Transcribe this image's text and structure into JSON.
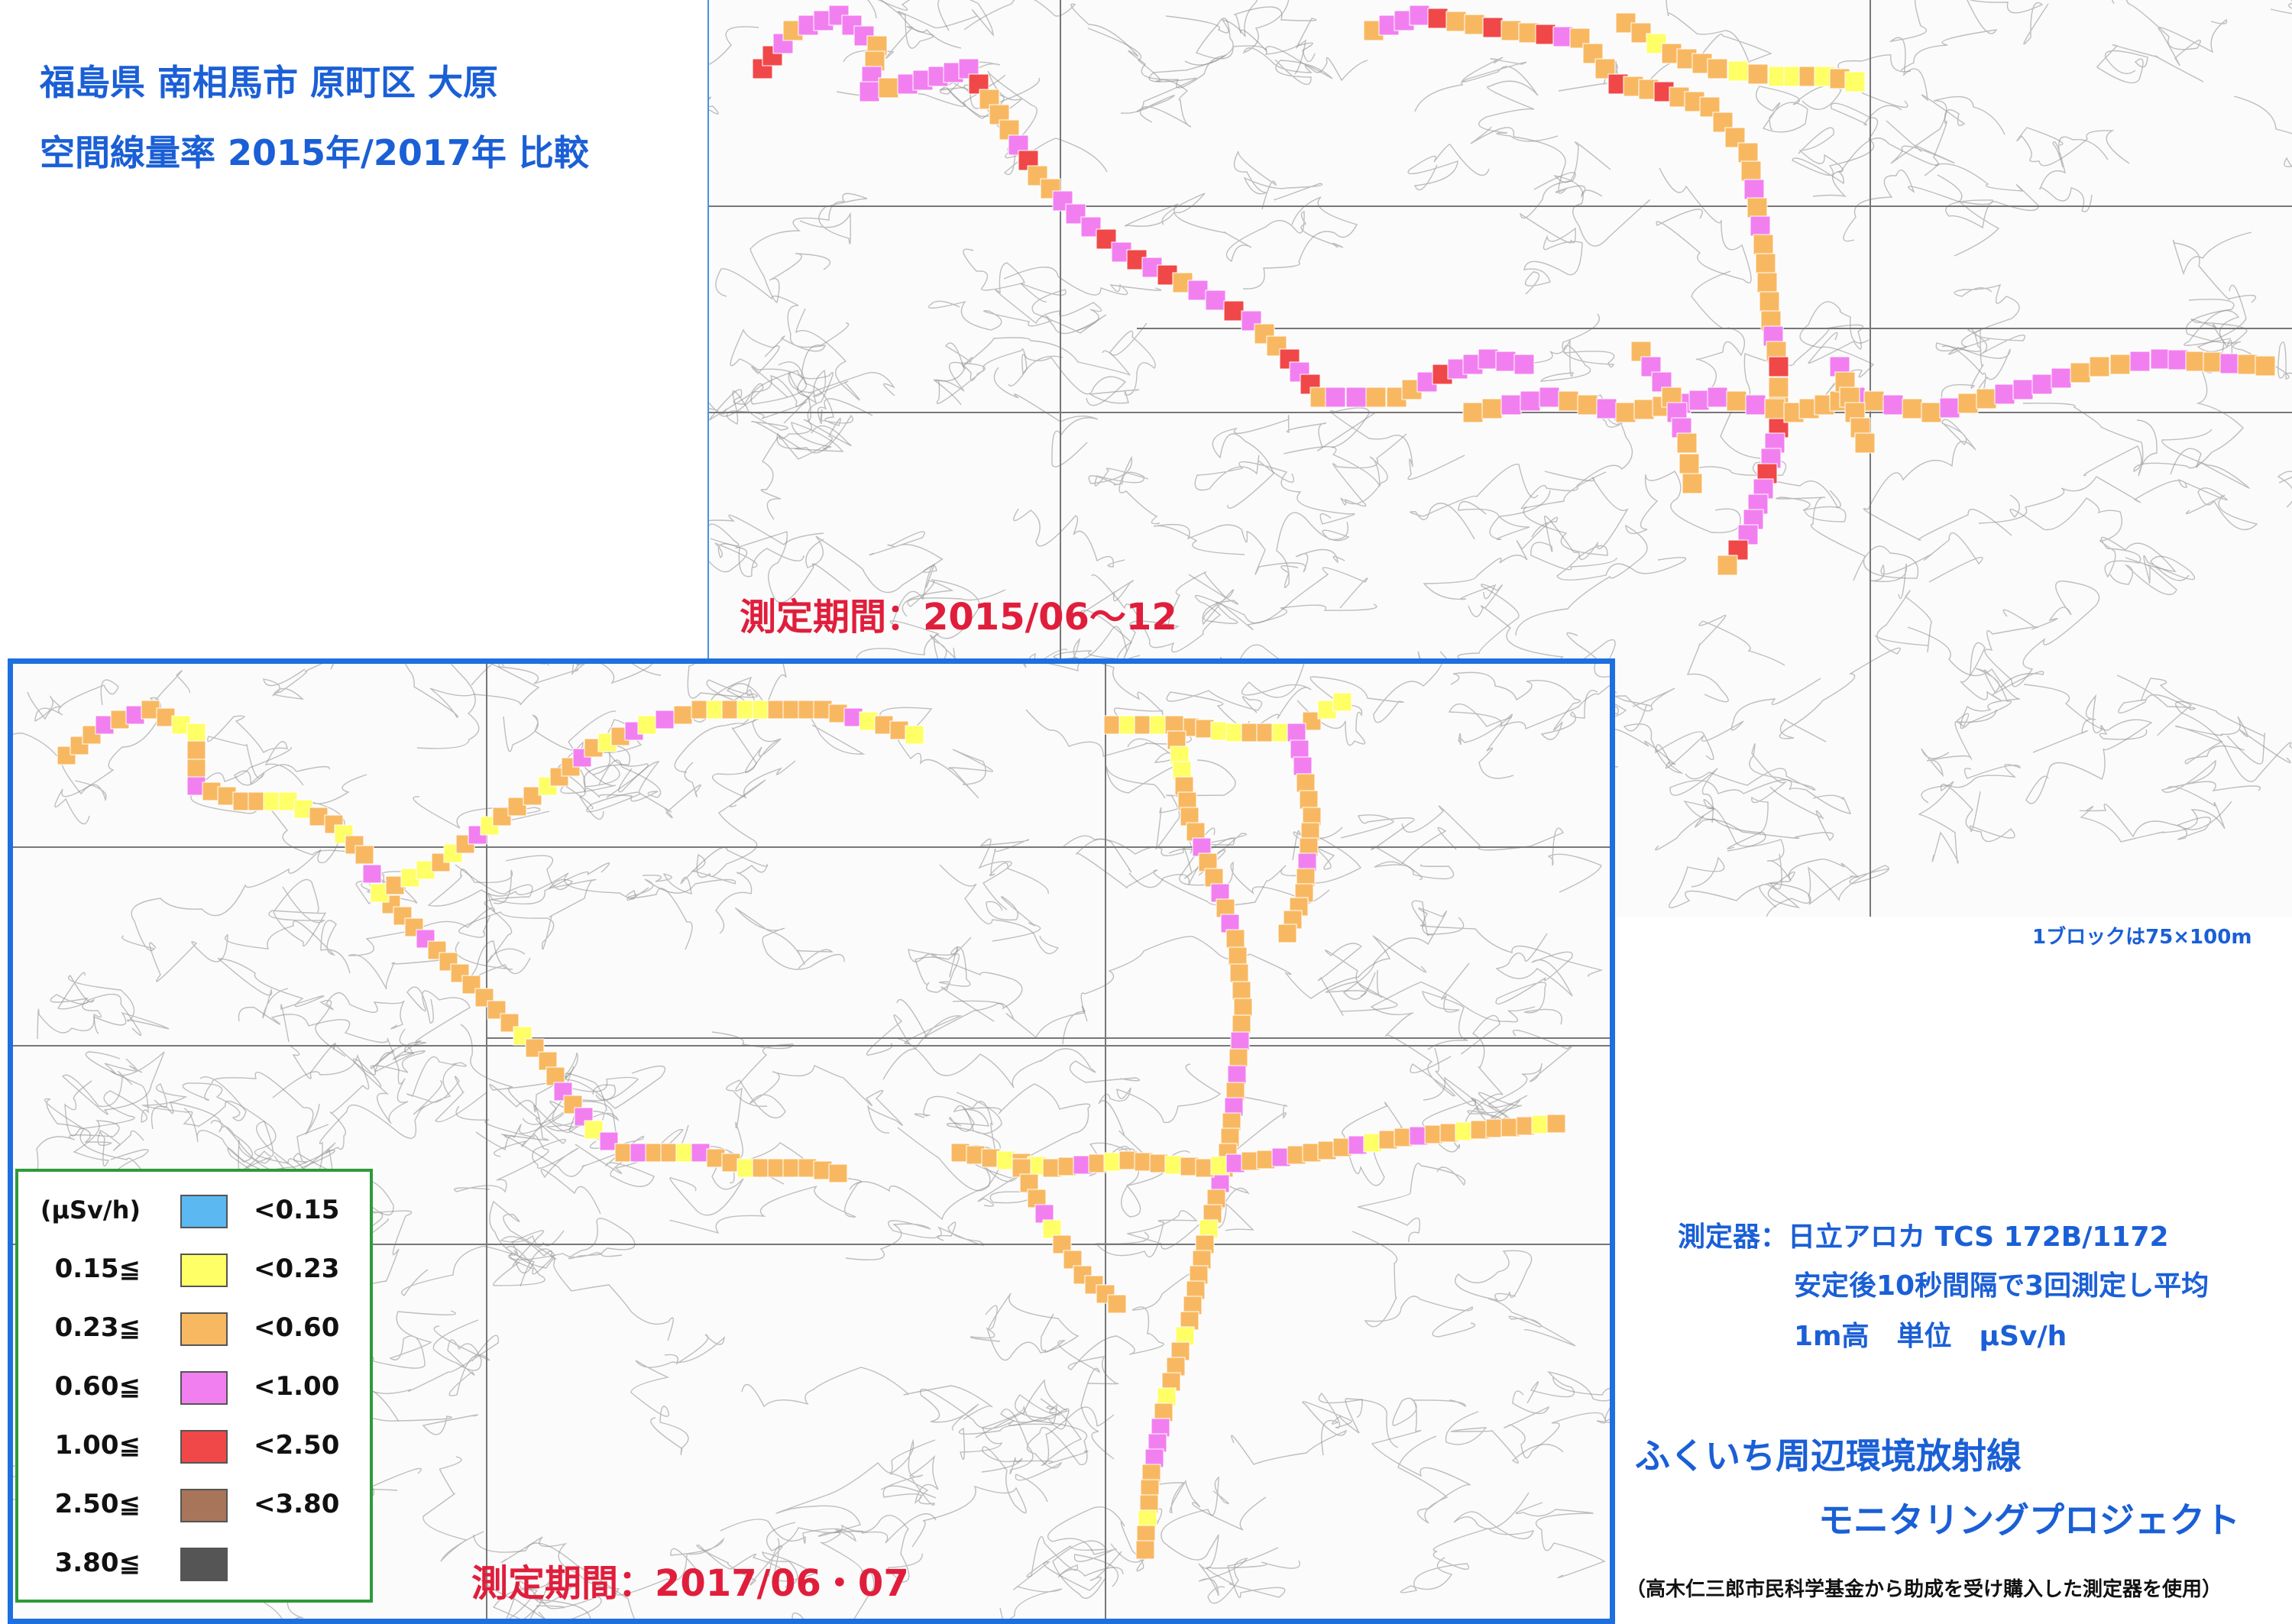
{
  "titles": {
    "line1": "福島県 南相馬市 原町区 大原",
    "line2": "空間線量率 2015年/2017年 比較"
  },
  "maps": {
    "map2015": {
      "period": "測定期間：2015/06～12"
    },
    "map2017": {
      "period": "測定期間：2017/06・07"
    }
  },
  "block_note": "1ブロックは75×100m",
  "legend": {
    "unit": "(μSv/h)",
    "rows": [
      {
        "from": "",
        "to": "<0.15",
        "color": "#5bb8f0"
      },
      {
        "from": "0.15≦",
        "to": "<0.23",
        "color": "#ffff66"
      },
      {
        "from": "0.23≦",
        "to": "<0.60",
        "color": "#f8b862"
      },
      {
        "from": "0.60≦",
        "to": "<1.00",
        "color": "#f27ff0"
      },
      {
        "from": "1.00≦",
        "to": "<2.50",
        "color": "#f04848"
      },
      {
        "from": "2.50≦",
        "to": "<3.80",
        "color": "#a8755a"
      },
      {
        "from": "3.80≦",
        "to": "",
        "color": "#555555"
      }
    ]
  },
  "instrument": {
    "line1": "測定器：日立アロカ TCS 172B/1172",
    "line2": "安定後10秒間隔で3回測定し平均",
    "line3": "1m高　単位　μSv/h"
  },
  "project": {
    "line1": "ふくいち周辺環境放射線",
    "line2": "モニタリングプロジェクト"
  },
  "footnote": "（高木仁三郎市民科学基金から助成を受け購入した測定器を使用）",
  "colors": {
    "title_blue": "#1a5fd6",
    "period_red": "#e01e3c",
    "legend_border": "#2e9a3a",
    "frame_blue": "#1e6fe0"
  }
}
